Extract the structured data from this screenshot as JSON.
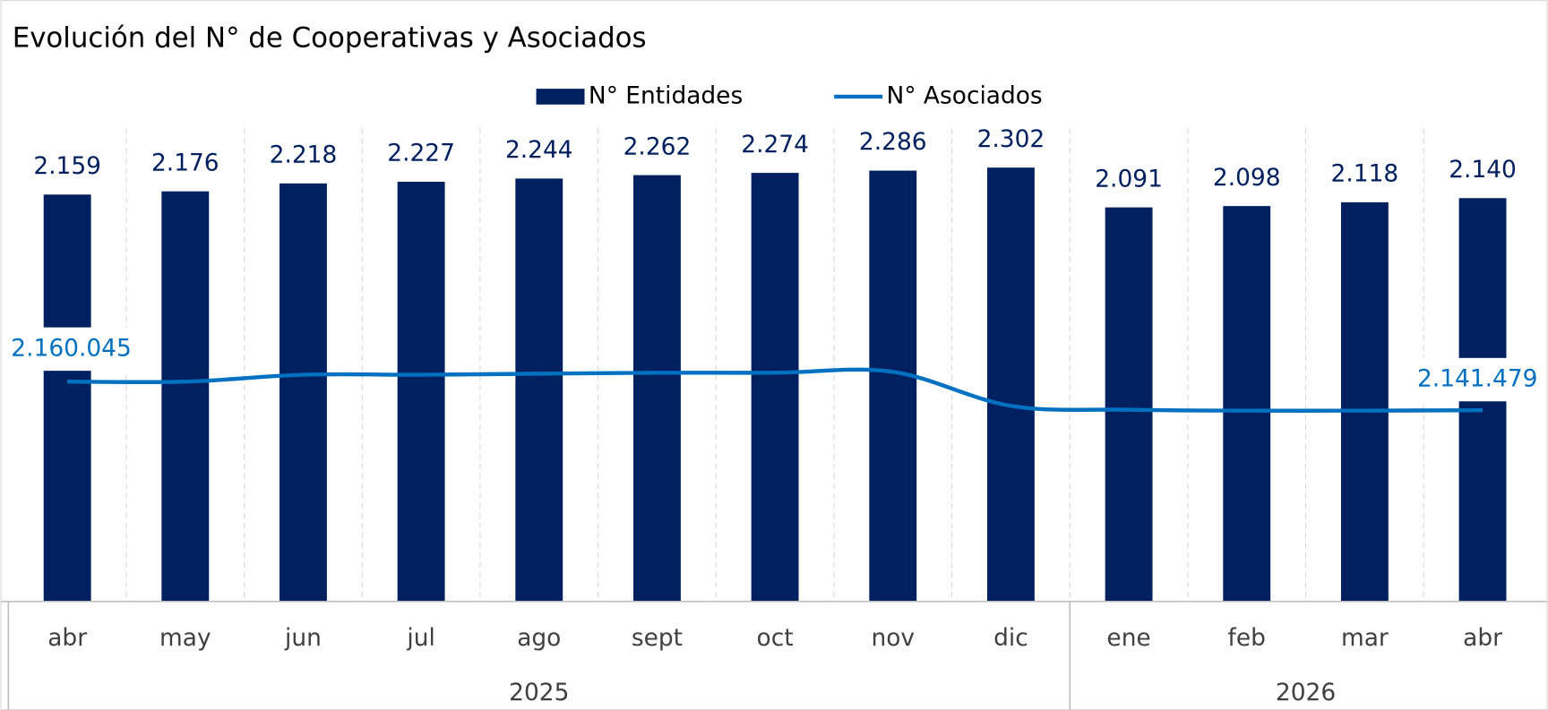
{
  "chart_data": {
    "type": "bar",
    "title": "Evolución del N° de Cooperativas y Asociados",
    "categories": [
      "abr",
      "may",
      "jun",
      "jul",
      "ago",
      "sept",
      "oct",
      "nov",
      "dic",
      "ene",
      "feb",
      "mar",
      "abr"
    ],
    "category_groups": [
      "2025",
      "2025",
      "2025",
      "2025",
      "2025",
      "2025",
      "2025",
      "2025",
      "2025",
      "2026",
      "2026",
      "2026",
      "2026"
    ],
    "series": [
      {
        "name": "N° Entidades",
        "type": "bar",
        "color": "#002060",
        "values": [
          2159,
          2176,
          2218,
          2227,
          2244,
          2262,
          2274,
          2286,
          2302,
          2091,
          2098,
          2118,
          2140
        ],
        "value_labels": [
          "2.159",
          "2.176",
          "2.218",
          "2.227",
          "2.244",
          "2.262",
          "2.274",
          "2.286",
          "2.302",
          "2.091",
          "2.098",
          "2.118",
          "2.140"
        ]
      },
      {
        "name": "N° Asociados",
        "type": "line",
        "axis": "y2",
        "color": "#0070c0",
        "values": [
          2160045,
          2160045,
          2164500,
          2164500,
          2165200,
          2165800,
          2165800,
          2166400,
          2144300,
          2141800,
          2141200,
          2141200,
          2141479
        ],
        "value_labels": [
          "2.160.045",
          null,
          null,
          null,
          null,
          null,
          null,
          null,
          null,
          null,
          null,
          null,
          "2.141.479"
        ]
      }
    ],
    "ylim": [
      0,
      2600
    ],
    "y2lim": [
      2017279,
      2335461
    ],
    "grid": true,
    "legend": "top"
  }
}
